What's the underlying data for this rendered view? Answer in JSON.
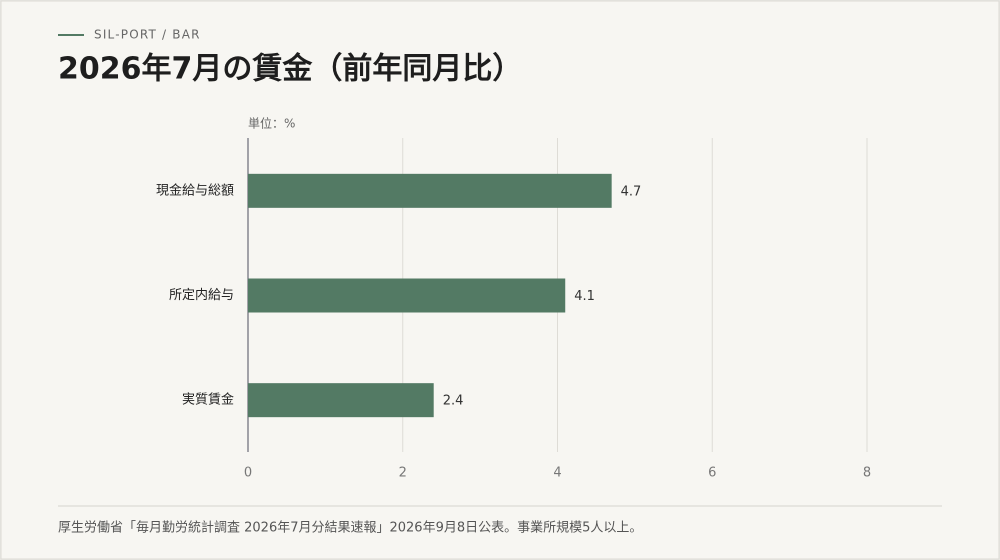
{
  "kicker": "SIL-PORT / BAR",
  "chart_data": {
    "type": "bar",
    "orientation": "horizontal",
    "title": "2026年7月の賃金（前年同月比）",
    "unit_label": "単位：%",
    "categories": [
      "現金給与総額",
      "所定内給与",
      "実質賃金"
    ],
    "values": [
      4.7,
      4.1,
      2.4
    ],
    "color": "#537a64",
    "xlim": [
      0,
      8
    ],
    "xticks": [
      0,
      2,
      4,
      6,
      8
    ],
    "grid": true
  },
  "source": "厚生労働省「毎月勤労統計調査 2026年7月分結果速報」2026年9月8日公表。事業所規模5人以上。"
}
